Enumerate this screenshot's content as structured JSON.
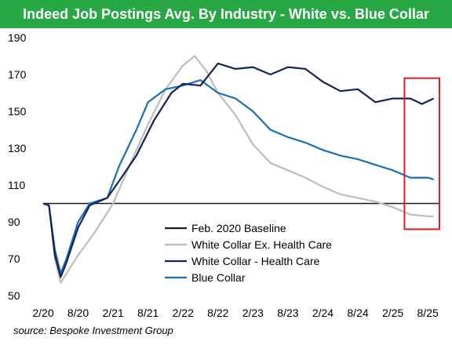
{
  "title": "Indeed Job Postings Avg. By Industry - White vs. Blue Collar",
  "source": "source: Bespoke Investment Group",
  "colors": {
    "title_bg": "#27a844",
    "baseline": "#1a1a1a",
    "wc_ex_hc": "#bdbdbd",
    "wc_hc": "#15225a",
    "blue_collar": "#1a6fb5",
    "highlight_box": "#e02020"
  },
  "chart_data": {
    "type": "line",
    "title": "Indeed Job Postings Avg. By Industry - White vs. Blue Collar",
    "xlabel": "",
    "ylabel": "",
    "ylim": [
      50,
      190
    ],
    "xlim": [
      "2020-02",
      "2025-10"
    ],
    "yticks": [
      50,
      70,
      90,
      110,
      130,
      150,
      170,
      190
    ],
    "xticks": [
      "2/20",
      "8/20",
      "2/21",
      "8/21",
      "2/22",
      "8/22",
      "2/23",
      "8/23",
      "2/24",
      "8/24",
      "2/25",
      "8/25"
    ],
    "grid": false,
    "legend_position": "bottom-center",
    "highlight": "red box around latest readings (mid-2025)",
    "series": [
      {
        "name": "Feb. 2020 Baseline",
        "color": "#1a1a1a",
        "points": [
          [
            "2020-02",
            100
          ],
          [
            "2025-10",
            100
          ]
        ]
      },
      {
        "name": "White Collar Ex. Health Care",
        "color": "#bdbdbd",
        "points": [
          [
            "2020-02",
            100
          ],
          [
            "2020-03",
            99
          ],
          [
            "2020-04",
            70
          ],
          [
            "2020-05",
            57
          ],
          [
            "2020-06",
            62
          ],
          [
            "2020-08",
            72
          ],
          [
            "2020-11",
            85
          ],
          [
            "2021-02",
            100
          ],
          [
            "2021-05",
            122
          ],
          [
            "2021-08",
            143
          ],
          [
            "2021-11",
            162
          ],
          [
            "2022-02",
            175
          ],
          [
            "2022-04",
            180
          ],
          [
            "2022-06",
            172
          ],
          [
            "2022-08",
            160
          ],
          [
            "2022-11",
            148
          ],
          [
            "2023-02",
            132
          ],
          [
            "2023-05",
            122
          ],
          [
            "2023-08",
            118
          ],
          [
            "2023-11",
            114
          ],
          [
            "2024-02",
            109
          ],
          [
            "2024-05",
            105
          ],
          [
            "2024-08",
            103
          ],
          [
            "2024-11",
            101
          ],
          [
            "2025-02",
            98
          ],
          [
            "2025-05",
            94
          ],
          [
            "2025-08",
            93
          ],
          [
            "2025-09",
            93
          ]
        ]
      },
      {
        "name": "White Collar - Health Care",
        "color": "#15225a",
        "points": [
          [
            "2020-02",
            100
          ],
          [
            "2020-03",
            99
          ],
          [
            "2020-04",
            72
          ],
          [
            "2020-05",
            60
          ],
          [
            "2020-06",
            68
          ],
          [
            "2020-08",
            87
          ],
          [
            "2020-10",
            99
          ],
          [
            "2021-01",
            103
          ],
          [
            "2021-03",
            112
          ],
          [
            "2021-06",
            126
          ],
          [
            "2021-09",
            145
          ],
          [
            "2021-12",
            160
          ],
          [
            "2022-02",
            165
          ],
          [
            "2022-05",
            164
          ],
          [
            "2022-08",
            176
          ],
          [
            "2022-11",
            173
          ],
          [
            "2023-02",
            174
          ],
          [
            "2023-05",
            170
          ],
          [
            "2023-08",
            174
          ],
          [
            "2023-11",
            173
          ],
          [
            "2024-02",
            166
          ],
          [
            "2024-05",
            161
          ],
          [
            "2024-08",
            162
          ],
          [
            "2024-11",
            155
          ],
          [
            "2025-02",
            157
          ],
          [
            "2025-05",
            157
          ],
          [
            "2025-07",
            154
          ],
          [
            "2025-09",
            157
          ]
        ]
      },
      {
        "name": "Blue Collar",
        "color": "#1a6fb5",
        "points": [
          [
            "2020-02",
            100
          ],
          [
            "2020-03",
            99
          ],
          [
            "2020-04",
            75
          ],
          [
            "2020-05",
            62
          ],
          [
            "2020-06",
            70
          ],
          [
            "2020-08",
            90
          ],
          [
            "2020-10",
            100
          ],
          [
            "2021-01",
            103
          ],
          [
            "2021-03",
            120
          ],
          [
            "2021-06",
            140
          ],
          [
            "2021-08",
            155
          ],
          [
            "2021-11",
            162
          ],
          [
            "2022-02",
            164
          ],
          [
            "2022-05",
            167
          ],
          [
            "2022-08",
            160
          ],
          [
            "2022-11",
            157
          ],
          [
            "2023-02",
            150
          ],
          [
            "2023-05",
            140
          ],
          [
            "2023-08",
            136
          ],
          [
            "2023-11",
            133
          ],
          [
            "2024-02",
            129
          ],
          [
            "2024-05",
            126
          ],
          [
            "2024-08",
            124
          ],
          [
            "2024-11",
            121
          ],
          [
            "2025-02",
            118
          ],
          [
            "2025-05",
            114
          ],
          [
            "2025-08",
            114
          ],
          [
            "2025-09",
            113
          ]
        ]
      }
    ]
  }
}
